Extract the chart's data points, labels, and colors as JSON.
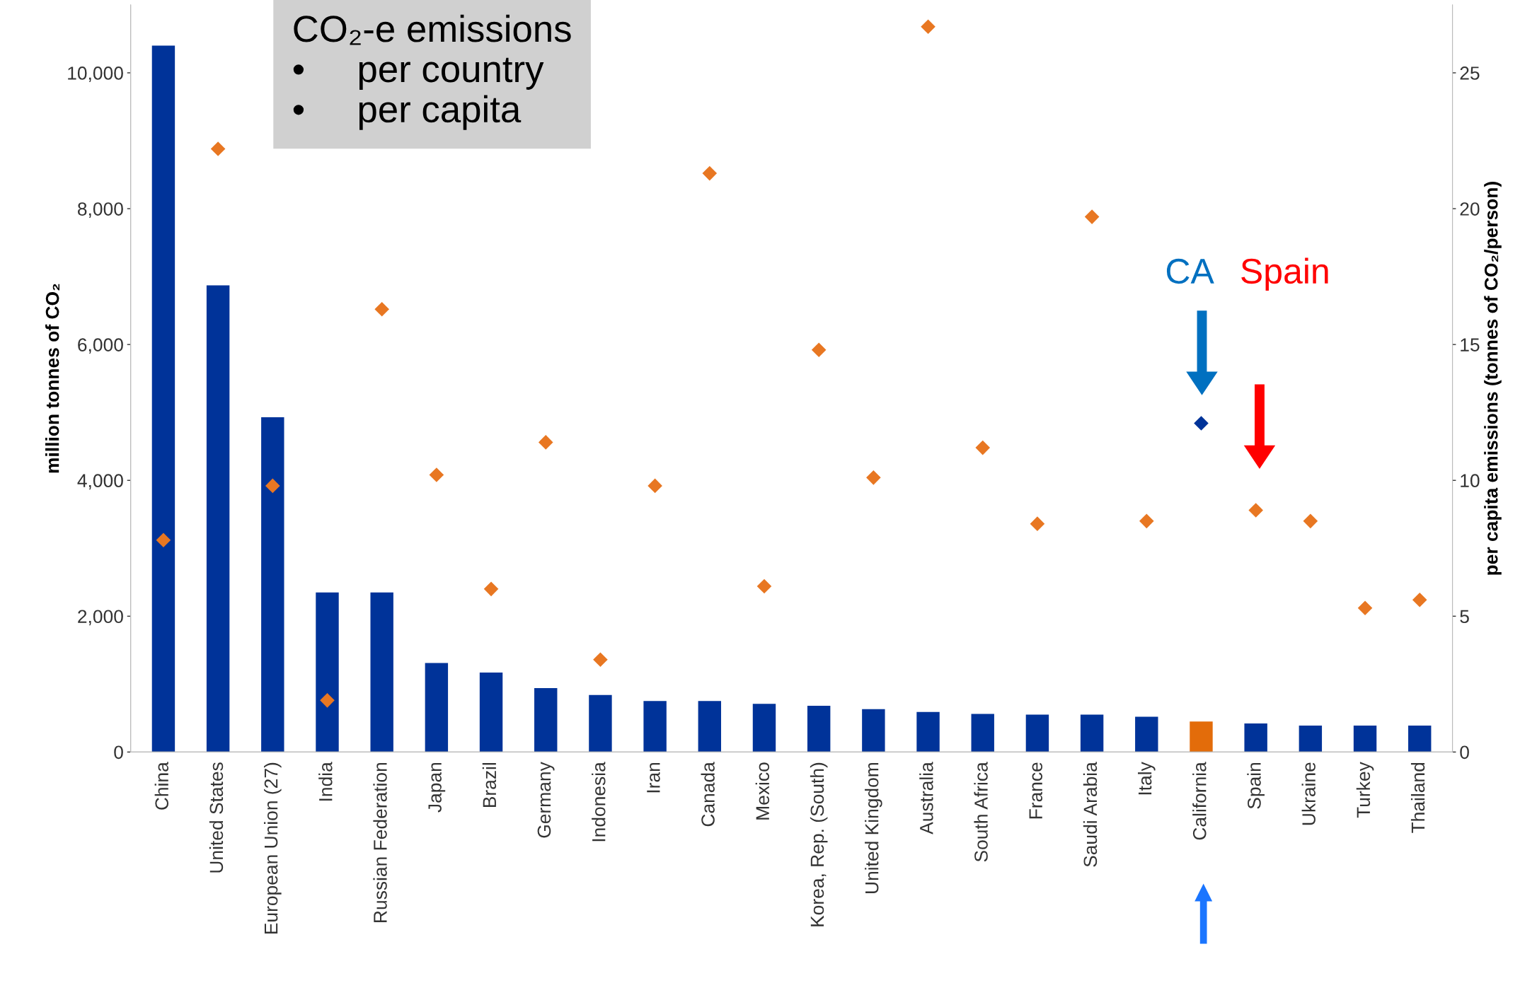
{
  "chart_data": {
    "type": "bar",
    "categories": [
      "China",
      "United States",
      "European Union (27)",
      "India",
      "Russian Federation",
      "Japan",
      "Brazil",
      "Germany",
      "Indonesia",
      "Iran",
      "Canada",
      "Mexico",
      "Korea, Rep. (South)",
      "United Kingdom",
      "Australia",
      "South Africa",
      "France",
      "Saudi Arabia",
      "Italy",
      "California",
      "Spain",
      "Ukraine",
      "Turkey",
      "Thailand"
    ],
    "series": [
      {
        "type": "bar",
        "colors": [
          "#003399",
          "#003399",
          "#003399",
          "#003399",
          "#003399",
          "#003399",
          "#003399",
          "#003399",
          "#003399",
          "#003399",
          "#003399",
          "#003399",
          "#003399",
          "#003399",
          "#003399",
          "#003399",
          "#003399",
          "#003399",
          "#003399",
          "#e36c0a",
          "#003399",
          "#003399",
          "#003399",
          "#003399"
        ],
        "values": [
          10400,
          6870,
          4930,
          2350,
          2350,
          1310,
          1170,
          940,
          840,
          750,
          750,
          710,
          680,
          630,
          590,
          560,
          550,
          550,
          520,
          450,
          420,
          390,
          390,
          390
        ]
      },
      {
        "type": "scatter",
        "axis": "y2",
        "marker": "diamond",
        "colors": [
          "#e87722",
          "#e87722",
          "#e87722",
          "#e87722",
          "#e87722",
          "#e87722",
          "#e87722",
          "#e87722",
          "#e87722",
          "#e87722",
          "#e87722",
          "#e87722",
          "#e87722",
          "#e87722",
          "#e87722",
          "#e87722",
          "#e87722",
          "#e87722",
          "#e87722",
          "#003399",
          "#e87722",
          "#e87722",
          "#e87722",
          "#e87722"
        ],
        "values": [
          7.8,
          22.2,
          9.8,
          1.9,
          16.3,
          10.2,
          6.0,
          11.4,
          3.4,
          9.8,
          21.3,
          6.1,
          14.8,
          10.1,
          26.7,
          11.2,
          8.4,
          19.7,
          8.5,
          12.1,
          8.9,
          8.5,
          5.3,
          5.6
        ]
      }
    ],
    "ylabel": "million tonnes of CO₂",
    "y2label": "per capita emissions (tonnes of CO₂/person)",
    "ylim": [
      0,
      11000
    ],
    "yticks": [
      {
        "value": 0,
        "label": "0"
      },
      {
        "value": 2000,
        "label": "2,000"
      },
      {
        "value": 4000,
        "label": "4,000"
      },
      {
        "value": 6000,
        "label": "6,000"
      },
      {
        "value": 8000,
        "label": "8,000"
      },
      {
        "value": 10000,
        "label": "10,000"
      }
    ],
    "y2lim": [
      0,
      27.5
    ],
    "y2ticks": [
      0,
      5,
      10,
      15,
      20,
      25
    ],
    "grid": false,
    "legend": false,
    "annotations": [
      "CO₂-e emissions\n•     per country\n•     per capita",
      "CA",
      "Spain"
    ]
  }
}
